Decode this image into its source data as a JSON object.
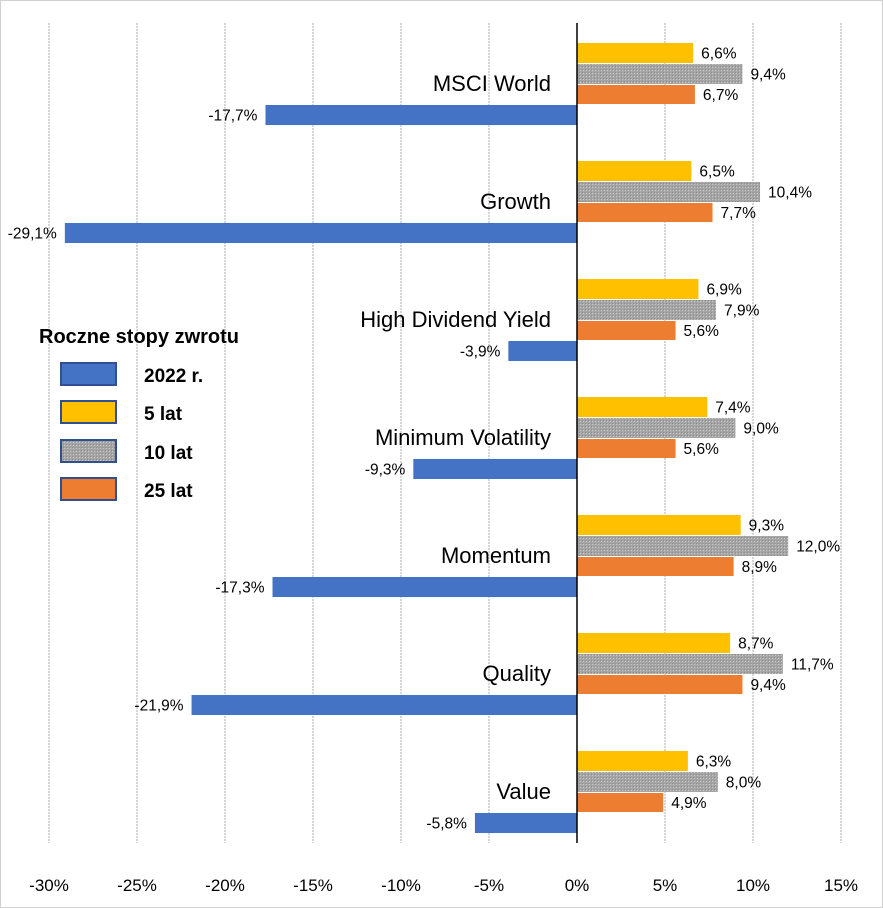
{
  "chart_data": {
    "type": "bar",
    "orientation": "horizontal",
    "categories": [
      "MSCI World",
      "Growth",
      "High Dividend Yield",
      "Minimum Volatility",
      "Momentum",
      "Quality",
      "Value"
    ],
    "legend_title": "Roczne stopy zwrotu",
    "legend_placement": "left",
    "series": [
      {
        "name": "2022 r.",
        "color": "#4472C4",
        "values": [
          -17.7,
          -29.1,
          -3.9,
          -9.3,
          -17.3,
          -21.9,
          -5.8
        ],
        "labels": [
          "-17,7%",
          "-29,1%",
          "-3,9%",
          "-9,3%",
          "-17,3%",
          "-21,9%",
          "-5,8%"
        ]
      },
      {
        "name": "5 lat",
        "color": "#FFC000",
        "values": [
          6.6,
          6.5,
          6.9,
          7.4,
          9.3,
          8.7,
          6.3
        ],
        "labels": [
          "6,6%",
          "6,5%",
          "6,9%",
          "7,4%",
          "9,3%",
          "8,7%",
          "6,3%"
        ]
      },
      {
        "name": "10 lat",
        "color": "#A5A5A5",
        "pattern": "dotted-texture",
        "values": [
          9.4,
          10.4,
          7.9,
          9.0,
          12.0,
          11.7,
          8.0
        ],
        "labels": [
          "9,4%",
          "10,4%",
          "7,9%",
          "9,0%",
          "12,0%",
          "11,7%",
          "8,0%"
        ]
      },
      {
        "name": "25 lat",
        "color": "#ED7D31",
        "values": [
          6.7,
          7.7,
          5.6,
          5.6,
          8.9,
          9.4,
          4.9
        ],
        "labels": [
          "6,7%",
          "7,7%",
          "5,6%",
          "5,6%",
          "8,9%",
          "9,4%",
          "4,9%"
        ]
      }
    ],
    "xlim": [
      -30,
      15
    ],
    "xticks": [
      -30,
      -25,
      -20,
      -15,
      -10,
      -5,
      0,
      5,
      10,
      15
    ],
    "xtick_labels": [
      "-30%",
      "-25%",
      "-20%",
      "-15%",
      "-10%",
      "-5%",
      "0%",
      "5%",
      "10%",
      "15%"
    ],
    "grid": "vertical dotted"
  }
}
